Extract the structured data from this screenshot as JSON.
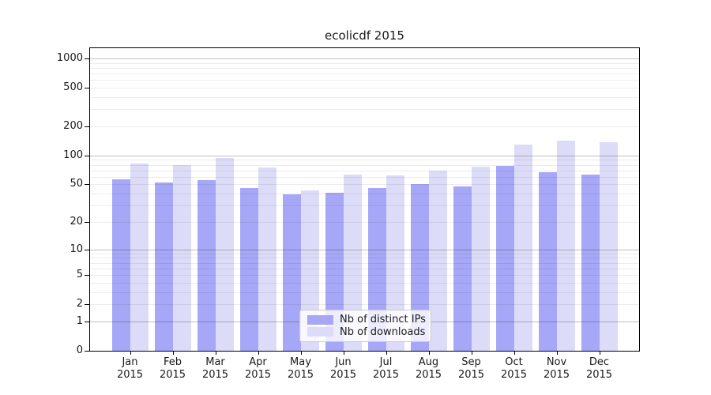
{
  "title": "ecolicdf 2015",
  "chart_data": {
    "type": "bar",
    "title": "ecolicdf 2015",
    "x_categories": [
      "Jan",
      "Feb",
      "Mar",
      "Apr",
      "May",
      "Jun",
      "Jul",
      "Aug",
      "Sep",
      "Oct",
      "Nov",
      "Dec"
    ],
    "x_year_line": "2015",
    "series": [
      {
        "name": "Nb of distinct IPs",
        "color": "#a7a7f7",
        "values": [
          56,
          52,
          55,
          46,
          39,
          41,
          46,
          50,
          48,
          78,
          67,
          63
        ]
      },
      {
        "name": "Nb of downloads",
        "color": "#dcdcf8",
        "values": [
          82,
          80,
          95,
          75,
          43,
          63,
          62,
          70,
          77,
          130,
          142,
          137
        ]
      }
    ],
    "y_axis": {
      "scale": "log1p",
      "tick_labels": [
        1000,
        500,
        200,
        100,
        50,
        20,
        10,
        5,
        2,
        1,
        0
      ],
      "ylim": [
        0,
        1300
      ],
      "major_gridlines": [
        1,
        10,
        100,
        1000
      ]
    },
    "legend_position": "lower center",
    "grid": true
  },
  "colors": {
    "distinct_ips": "#a7a7f7",
    "downloads": "#dcdcf8",
    "major_grid": "#c4c4c4",
    "minor_grid": "#ececec",
    "text": "#1a1a1a",
    "background": "#ffffff"
  }
}
